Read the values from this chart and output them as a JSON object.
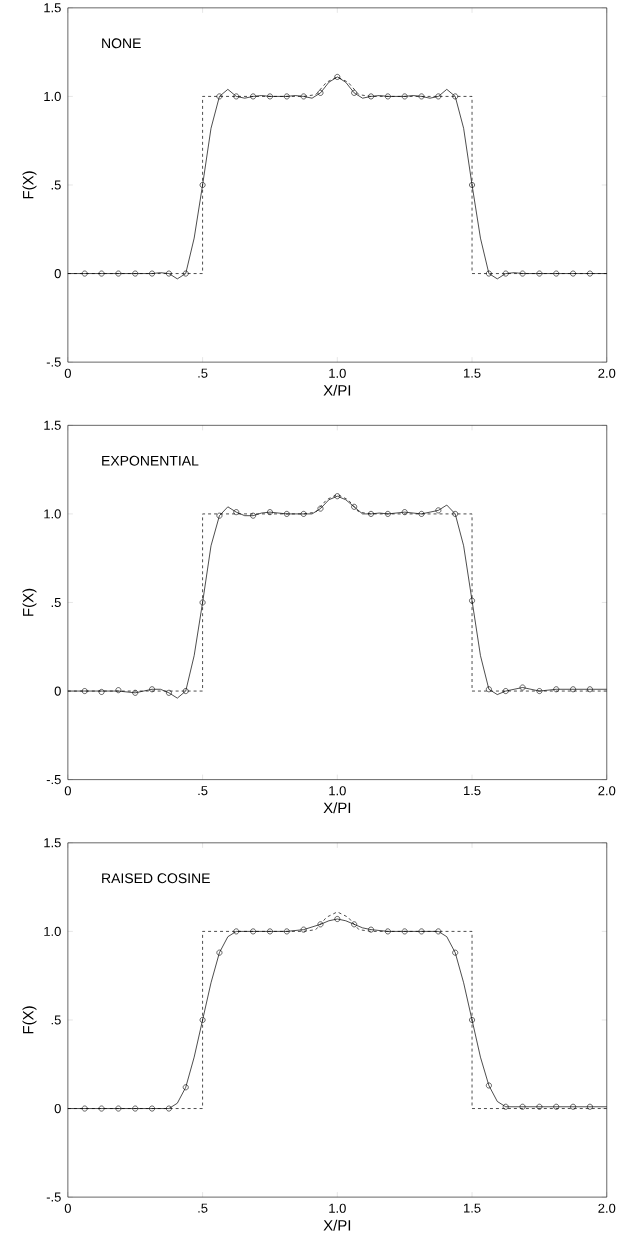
{
  "chart_data": [
    {
      "type": "line",
      "xlabel": "X/PI",
      "ylabel": "F(X)",
      "annotations": [
        "NONE"
      ],
      "xlim": [
        0,
        2
      ],
      "ylim": [
        -0.5,
        1.5
      ],
      "xticks": [
        0,
        {
          "value": 0.5,
          "label": ".5"
        },
        {
          "value": 1,
          "label": "1.0"
        },
        {
          "value": 1.5,
          "label": "1.5"
        },
        {
          "value": 2,
          "label": "2.0"
        }
      ],
      "yticks": [
        {
          "value": -0.5,
          "label": "-.5"
        },
        0,
        {
          "value": 0.5,
          "label": ".5"
        },
        {
          "value": 1,
          "label": "1.0"
        },
        {
          "value": 1.5,
          "label": "1.5"
        }
      ],
      "series": [
        {
          "line_style": "dashed",
          "color": "#000000",
          "x": [
            0,
            0.5,
            0.5,
            0.875,
            0.92,
            0.96,
            1.0,
            1.04,
            1.08,
            1.125,
            1.5,
            1.5,
            2
          ],
          "values": [
            0,
            0,
            1,
            1,
            1.01,
            1.08,
            1.11,
            1.08,
            1.01,
            1,
            1,
            0,
            0
          ]
        },
        {
          "line_style": "solid",
          "color": "#000000",
          "x": [
            0,
            0.0625,
            0.125,
            0.1875,
            0.25,
            0.3125,
            0.34375,
            0.375,
            0.40625,
            0.4375,
            0.46875,
            0.5,
            0.53125,
            0.5625,
            0.59375,
            0.625,
            0.65625,
            0.6875,
            0.71875,
            0.75,
            0.8125,
            0.84375,
            0.875,
            0.90625,
            0.9375,
            0.96875,
            1.0,
            1.03125,
            1.0625,
            1.09375,
            1.125,
            1.15625,
            1.1875,
            1.25,
            1.28125,
            1.3125,
            1.34375,
            1.375,
            1.40625,
            1.4375,
            1.46875,
            1.5,
            1.53125,
            1.5625,
            1.59375,
            1.625,
            1.65625,
            1.6875,
            1.75,
            1.8125,
            1.875,
            1.9375,
            2.0
          ],
          "values": [
            0,
            0,
            0,
            0,
            0,
            0,
            0.005,
            0,
            -0.03,
            0,
            0.2,
            0.5,
            0.82,
            1.0,
            1.04,
            1.0,
            0.99,
            1.0,
            1.005,
            1.0,
            1.0,
            1.005,
            1.0,
            0.99,
            1.02,
            1.08,
            1.11,
            1.08,
            1.02,
            0.99,
            1.0,
            1.005,
            1.0,
            1.0,
            1.005,
            1.0,
            0.99,
            1.0,
            1.04,
            1.0,
            0.82,
            0.5,
            0.2,
            0,
            -0.03,
            0,
            0.005,
            0,
            0,
            0,
            0,
            0,
            0
          ]
        },
        {
          "type": "scatter",
          "marker": "circle",
          "color": "#000000",
          "x": [
            0.0625,
            0.125,
            0.1875,
            0.25,
            0.3125,
            0.375,
            0.4375,
            0.5,
            0.5625,
            0.625,
            0.6875,
            0.75,
            0.8125,
            0.875,
            0.9375,
            1.0,
            1.0625,
            1.125,
            1.1875,
            1.25,
            1.3125,
            1.375,
            1.4375,
            1.5,
            1.5625,
            1.625,
            1.6875,
            1.75,
            1.8125,
            1.875,
            1.9375
          ],
          "values": [
            0,
            0,
            0,
            0,
            0,
            0,
            0,
            0.5,
            1.0,
            1.0,
            1.0,
            1.0,
            1.0,
            1.0,
            1.02,
            1.11,
            1.02,
            1.0,
            1.0,
            1.0,
            1.0,
            1.0,
            1.0,
            0.5,
            0,
            0,
            0,
            0,
            0,
            0,
            0
          ]
        }
      ]
    },
    {
      "type": "line",
      "xlabel": "X/PI",
      "ylabel": "F(X)",
      "annotations": [
        "EXPONENTIAL"
      ],
      "xlim": [
        0,
        2
      ],
      "ylim": [
        -0.5,
        1.5
      ],
      "xticks": [
        0,
        {
          "value": 0.5,
          "label": ".5"
        },
        {
          "value": 1,
          "label": "1.0"
        },
        {
          "value": 1.5,
          "label": "1.5"
        },
        {
          "value": 2,
          "label": "2.0"
        }
      ],
      "yticks": [
        {
          "value": -0.5,
          "label": "-.5"
        },
        0,
        {
          "value": 0.5,
          "label": ".5"
        },
        {
          "value": 1,
          "label": "1.0"
        },
        {
          "value": 1.5,
          "label": "1.5"
        }
      ],
      "series": [
        {
          "line_style": "dashed",
          "color": "#000000",
          "x": [
            0,
            0.5,
            0.5,
            0.875,
            0.92,
            0.96,
            1.0,
            1.04,
            1.08,
            1.125,
            1.5,
            1.5,
            2
          ],
          "values": [
            0,
            0,
            1,
            1,
            1.01,
            1.08,
            1.11,
            1.08,
            1.01,
            1,
            1,
            0,
            0
          ]
        },
        {
          "line_style": "solid",
          "color": "#000000",
          "x": [
            0,
            0.0625,
            0.125,
            0.1875,
            0.25,
            0.3125,
            0.34375,
            0.375,
            0.40625,
            0.4375,
            0.46875,
            0.5,
            0.53125,
            0.5625,
            0.59375,
            0.625,
            0.65625,
            0.6875,
            0.71875,
            0.75,
            0.8125,
            0.84375,
            0.875,
            0.90625,
            0.9375,
            0.96875,
            1.0,
            1.03125,
            1.0625,
            1.09375,
            1.125,
            1.15625,
            1.1875,
            1.25,
            1.28125,
            1.3125,
            1.34375,
            1.375,
            1.40625,
            1.4375,
            1.46875,
            1.5,
            1.53125,
            1.5625,
            1.59375,
            1.625,
            1.65625,
            1.6875,
            1.75,
            1.8125,
            1.875,
            1.9375,
            2.0
          ],
          "values": [
            0,
            0,
            0,
            0,
            -0.01,
            0.01,
            0.01,
            -0.01,
            -0.04,
            0,
            0.2,
            0.5,
            0.82,
            0.99,
            1.04,
            1.01,
            0.99,
            0.99,
            1.005,
            1.01,
            1.0,
            1.0,
            1.0,
            1.0,
            1.03,
            1.08,
            1.1,
            1.08,
            1.04,
            1.0,
            1.0,
            1.005,
            1.0,
            1.01,
            1.005,
            1.0,
            1.01,
            1.02,
            1.05,
            1.0,
            0.82,
            0.51,
            0.2,
            0.01,
            -0.02,
            0,
            0.01,
            0.02,
            0,
            0.01,
            0.01,
            0.01,
            0.01
          ]
        },
        {
          "type": "scatter",
          "marker": "circle",
          "color": "#000000",
          "x": [
            0.0625,
            0.125,
            0.1875,
            0.25,
            0.3125,
            0.375,
            0.4375,
            0.5,
            0.5625,
            0.625,
            0.6875,
            0.75,
            0.8125,
            0.875,
            0.9375,
            1.0,
            1.0625,
            1.125,
            1.1875,
            1.25,
            1.3125,
            1.375,
            1.4375,
            1.5,
            1.5625,
            1.625,
            1.6875,
            1.75,
            1.8125,
            1.875,
            1.9375
          ],
          "values": [
            0,
            -0.005,
            0.005,
            -0.01,
            0.01,
            -0.01,
            0,
            0.5,
            0.99,
            1.01,
            0.99,
            1.01,
            1.0,
            1.0,
            1.03,
            1.1,
            1.04,
            1.0,
            1.0,
            1.01,
            1.0,
            1.02,
            1.0,
            0.51,
            0.01,
            0,
            0.02,
            0,
            0.01,
            0.01,
            0.01
          ]
        }
      ]
    },
    {
      "type": "line",
      "xlabel": "X/PI",
      "ylabel": "F(X)",
      "annotations": [
        "RAISED  COSINE"
      ],
      "xlim": [
        0,
        2
      ],
      "ylim": [
        -0.5,
        1.5
      ],
      "xticks": [
        0,
        {
          "value": 0.5,
          "label": ".5"
        },
        {
          "value": 1,
          "label": "1.0"
        },
        {
          "value": 1.5,
          "label": "1.5"
        },
        {
          "value": 2,
          "label": "2.0"
        }
      ],
      "yticks": [
        {
          "value": -0.5,
          "label": "-.5"
        },
        0,
        {
          "value": 0.5,
          "label": ".5"
        },
        {
          "value": 1,
          "label": "1.0"
        },
        {
          "value": 1.5,
          "label": "1.5"
        }
      ],
      "series": [
        {
          "line_style": "dashed",
          "color": "#000000",
          "x": [
            0,
            0.5,
            0.5,
            0.875,
            0.92,
            0.96,
            1.0,
            1.04,
            1.08,
            1.125,
            1.5,
            1.5,
            2
          ],
          "values": [
            0,
            0,
            1,
            1,
            1.01,
            1.08,
            1.11,
            1.08,
            1.01,
            1,
            1,
            0,
            0
          ]
        },
        {
          "line_style": "solid",
          "color": "#000000",
          "x": [
            0,
            0.0625,
            0.125,
            0.1875,
            0.25,
            0.3125,
            0.375,
            0.40625,
            0.4375,
            0.46875,
            0.5,
            0.53125,
            0.5625,
            0.59375,
            0.625,
            0.6875,
            0.75,
            0.8125,
            0.875,
            0.9375,
            0.96875,
            1.0,
            1.03125,
            1.0625,
            1.09375,
            1.125,
            1.1875,
            1.25,
            1.3125,
            1.375,
            1.40625,
            1.4375,
            1.46875,
            1.5,
            1.53125,
            1.5625,
            1.59375,
            1.625,
            1.6875,
            1.75,
            1.8125,
            1.875,
            1.9375,
            2.0
          ],
          "values": [
            0,
            0,
            0,
            0,
            0,
            0,
            0,
            0.03,
            0.12,
            0.29,
            0.5,
            0.71,
            0.88,
            0.97,
            1.0,
            1.0,
            1.0,
            1.0,
            1.01,
            1.04,
            1.06,
            1.07,
            1.06,
            1.04,
            1.02,
            1.01,
            1.0,
            1.0,
            1.0,
            1.0,
            0.97,
            0.88,
            0.71,
            0.5,
            0.29,
            0.13,
            0.04,
            0.01,
            0.01,
            0.01,
            0.01,
            0.01,
            0.01,
            0.01
          ]
        },
        {
          "type": "scatter",
          "marker": "circle",
          "color": "#000000",
          "x": [
            0.0625,
            0.125,
            0.1875,
            0.25,
            0.3125,
            0.375,
            0.4375,
            0.5,
            0.5625,
            0.625,
            0.6875,
            0.75,
            0.8125,
            0.875,
            0.9375,
            1.0,
            1.0625,
            1.125,
            1.1875,
            1.25,
            1.3125,
            1.375,
            1.4375,
            1.5,
            1.5625,
            1.625,
            1.6875,
            1.75,
            1.8125,
            1.875,
            1.9375
          ],
          "values": [
            0,
            0,
            0,
            0,
            0,
            0,
            0.12,
            0.5,
            0.88,
            1.0,
            1.0,
            1.0,
            1.0,
            1.01,
            1.04,
            1.07,
            1.04,
            1.01,
            1.0,
            1.0,
            1.0,
            1.0,
            0.88,
            0.5,
            0.13,
            0.01,
            0.01,
            0.01,
            0.01,
            0.01,
            0.01
          ]
        }
      ]
    }
  ]
}
